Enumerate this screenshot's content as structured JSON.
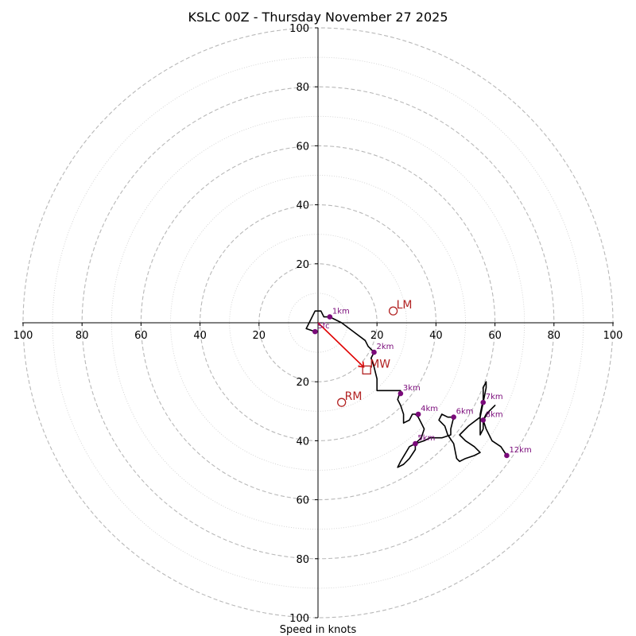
{
  "chart_data": {
    "type": "hodograph",
    "title": "KSLC 00Z - Thursday November 27 2025",
    "xlabel": "Speed in knots",
    "xlim": [
      -100,
      100
    ],
    "ylim": [
      -100,
      100
    ],
    "major_rings": [
      20,
      40,
      60,
      80,
      100
    ],
    "minor_rings": [
      10,
      30,
      50,
      70,
      90
    ],
    "x_ticks": [
      {
        "value": -100,
        "label": "100"
      },
      {
        "value": -80,
        "label": "80"
      },
      {
        "value": -60,
        "label": "60"
      },
      {
        "value": -40,
        "label": "40"
      },
      {
        "value": -20,
        "label": "20"
      },
      {
        "value": 20,
        "label": "20"
      },
      {
        "value": 40,
        "label": "40"
      },
      {
        "value": 60,
        "label": "60"
      },
      {
        "value": 80,
        "label": "80"
      },
      {
        "value": 100,
        "label": "100"
      }
    ],
    "y_ticks": [
      {
        "value": 100,
        "label": "100"
      },
      {
        "value": 80,
        "label": "80"
      },
      {
        "value": 60,
        "label": "60"
      },
      {
        "value": 40,
        "label": "40"
      },
      {
        "value": 20,
        "label": "20"
      },
      {
        "value": -20,
        "label": "20"
      },
      {
        "value": -40,
        "label": "40"
      },
      {
        "value": -60,
        "label": "60"
      },
      {
        "value": -80,
        "label": "80"
      },
      {
        "value": -100,
        "label": "100"
      }
    ],
    "hodograph_uv": [
      [
        -1,
        -3
      ],
      [
        -4,
        -2
      ],
      [
        -3,
        0
      ],
      [
        -1,
        4
      ],
      [
        1,
        4
      ],
      [
        2,
        2
      ],
      [
        4,
        2
      ],
      [
        8,
        0
      ],
      [
        12,
        -3
      ],
      [
        16,
        -6
      ],
      [
        17,
        -8
      ],
      [
        19,
        -10
      ],
      [
        18,
        -12
      ],
      [
        19,
        -15
      ],
      [
        20,
        -19
      ],
      [
        20,
        -23
      ],
      [
        24,
        -23
      ],
      [
        28,
        -23
      ],
      [
        27,
        -26
      ],
      [
        28,
        -28
      ],
      [
        29,
        -31
      ],
      [
        29,
        -34
      ],
      [
        31,
        -33
      ],
      [
        32,
        -31
      ],
      [
        33,
        -31
      ],
      [
        34,
        -32
      ],
      [
        35,
        -34
      ],
      [
        36,
        -36
      ],
      [
        35,
        -39
      ],
      [
        33,
        -41
      ],
      [
        31,
        -42
      ],
      [
        28,
        -47
      ],
      [
        27,
        -49
      ],
      [
        29,
        -48
      ],
      [
        31,
        -46
      ],
      [
        33,
        -43
      ],
      [
        33,
        -41
      ],
      [
        36,
        -40
      ],
      [
        38,
        -39
      ],
      [
        42,
        -39
      ],
      [
        45,
        -38
      ],
      [
        45,
        -36
      ],
      [
        46,
        -32
      ],
      [
        44,
        -32
      ],
      [
        42,
        -31
      ],
      [
        41,
        -33
      ],
      [
        43,
        -35
      ],
      [
        44,
        -38
      ],
      [
        46,
        -41
      ],
      [
        47,
        -46
      ],
      [
        48,
        -47
      ],
      [
        50,
        -46
      ],
      [
        53,
        -45
      ],
      [
        55,
        -44
      ],
      [
        53,
        -42
      ],
      [
        50,
        -40
      ],
      [
        48,
        -38
      ],
      [
        51,
        -35
      ],
      [
        55,
        -32
      ],
      [
        56,
        -27
      ],
      [
        57,
        -22
      ],
      [
        57,
        -20
      ],
      [
        56,
        -22
      ],
      [
        56,
        -26
      ],
      [
        55,
        -31
      ],
      [
        55,
        -34
      ],
      [
        55,
        -37
      ],
      [
        55,
        -38
      ],
      [
        56,
        -36
      ],
      [
        56,
        -33
      ],
      [
        57,
        -31
      ],
      [
        59,
        -29
      ],
      [
        60,
        -28
      ],
      [
        58,
        -30
      ],
      [
        56,
        -33
      ],
      [
        57,
        -36
      ],
      [
        58,
        -38
      ],
      [
        59,
        -40
      ],
      [
        62,
        -42
      ],
      [
        64,
        -45
      ]
    ],
    "height_markers": [
      {
        "label": "Sfc",
        "u": -1,
        "v": -3
      },
      {
        "label": "1km",
        "u": 4,
        "v": 2
      },
      {
        "label": "2km",
        "u": 19,
        "v": -10
      },
      {
        "label": "3km",
        "u": 28,
        "v": -24
      },
      {
        "label": "4km",
        "u": 34,
        "v": -31
      },
      {
        "label": "5km",
        "u": 33,
        "v": -41
      },
      {
        "label": "6km",
        "u": 46,
        "v": -32
      },
      {
        "label": "7km",
        "u": 56,
        "v": -27
      },
      {
        "label": "8km",
        "u": 56,
        "v": -33
      },
      {
        "label": "12km",
        "u": 64,
        "v": -45
      }
    ],
    "storm_motion": {
      "LM": {
        "label": "LM",
        "u": 25.5,
        "v": 4
      },
      "MW": {
        "label": "MW",
        "u": 16.5,
        "v": -16
      },
      "RM": {
        "label": "RM",
        "u": 8,
        "v": -27
      }
    },
    "shear_vector": {
      "from": [
        0,
        0
      ],
      "to": [
        15.5,
        -15
      ]
    },
    "colors": {
      "hodograph": "#000000",
      "height_markers": "#7a0a7a",
      "storm_motion": "#b22222",
      "shear_vector": "#e00000",
      "major_rings": "#b8b8b8",
      "minor_rings": "#d2d2d2"
    }
  }
}
